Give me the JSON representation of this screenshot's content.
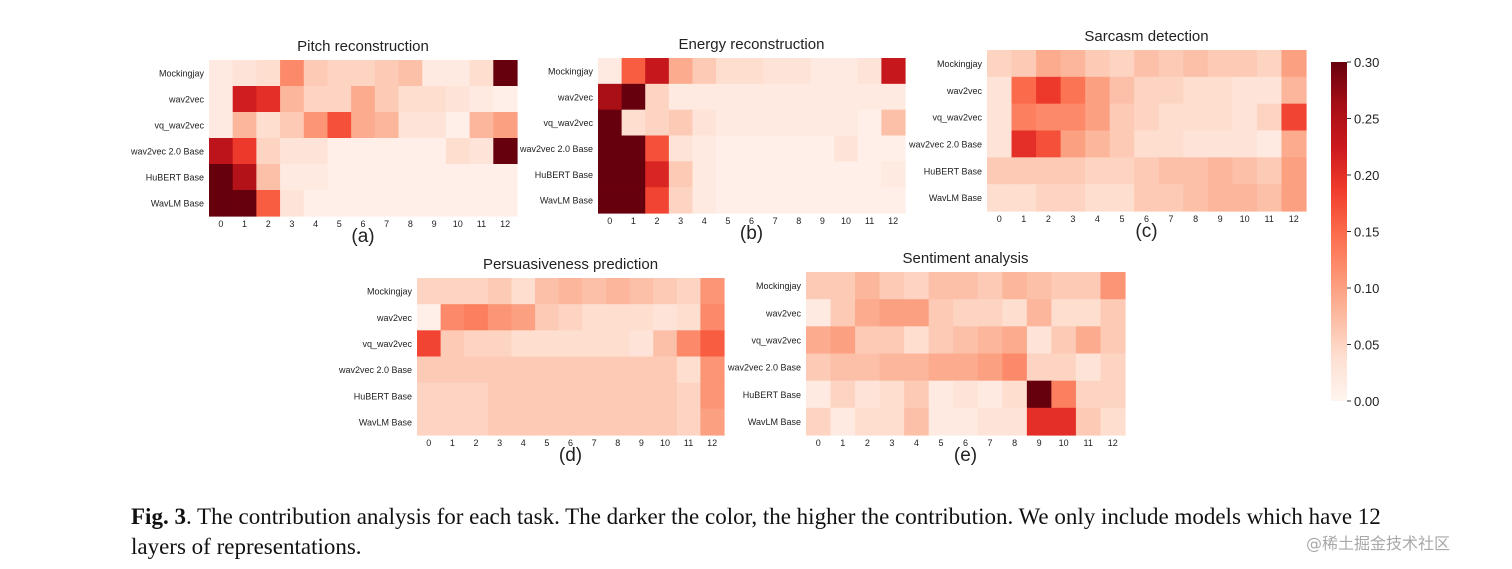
{
  "colormap": {
    "name": "Reds",
    "stops": [
      "#fff5f0",
      "#fee0d2",
      "#fcbba1",
      "#fc9272",
      "#fb6a4a",
      "#ef3b2c",
      "#cb181d",
      "#a50f15",
      "#67000d"
    ]
  },
  "colorbar": {
    "vmin": 0.0,
    "vmax": 0.3,
    "tick_labels": [
      "0.30",
      "0.25",
      "0.20",
      "0.15",
      "0.10",
      "0.05",
      "0.00"
    ],
    "tick_values": [
      0.3,
      0.25,
      0.2,
      0.15,
      0.1,
      0.05,
      0.0
    ]
  },
  "chart_data": [
    {
      "type": "heatmap",
      "title": "Pitch reconstruction",
      "panel_label": "(a)",
      "rows": [
        "Mockingjay",
        "wav2vec",
        "vq_wav2vec",
        "wav2vec 2.0 Base",
        "HuBERT Base",
        "WavLM Base"
      ],
      "cols": [
        "0",
        "1",
        "2",
        "3",
        "4",
        "5",
        "6",
        "7",
        "8",
        "9",
        "10",
        "11",
        "12"
      ],
      "values": [
        [
          0.02,
          0.03,
          0.04,
          0.12,
          0.06,
          0.05,
          0.05,
          0.06,
          0.07,
          0.02,
          0.02,
          0.04,
          0.3
        ],
        [
          0.02,
          0.22,
          0.2,
          0.08,
          0.05,
          0.05,
          0.09,
          0.06,
          0.04,
          0.04,
          0.03,
          0.02,
          0.01
        ],
        [
          0.02,
          0.08,
          0.04,
          0.06,
          0.11,
          0.17,
          0.09,
          0.08,
          0.03,
          0.03,
          0.01,
          0.08,
          0.1
        ],
        [
          0.24,
          0.19,
          0.05,
          0.03,
          0.03,
          0.01,
          0.01,
          0.01,
          0.01,
          0.01,
          0.04,
          0.03,
          0.3
        ],
        [
          0.3,
          0.25,
          0.07,
          0.02,
          0.02,
          0.01,
          0.01,
          0.01,
          0.01,
          0.01,
          0.01,
          0.01,
          0.01
        ],
        [
          0.3,
          0.3,
          0.16,
          0.03,
          0.01,
          0.01,
          0.01,
          0.01,
          0.01,
          0.01,
          0.01,
          0.01,
          0.01
        ]
      ]
    },
    {
      "type": "heatmap",
      "title": "Energy reconstruction",
      "panel_label": "(b)",
      "rows": [
        "Mockingjay",
        "wav2vec",
        "vq_wav2vec",
        "wav2vec 2.0 Base",
        "HuBERT Base",
        "WavLM Base"
      ],
      "cols": [
        "0",
        "1",
        "2",
        "3",
        "4",
        "5",
        "6",
        "7",
        "8",
        "9",
        "10",
        "11",
        "12"
      ],
      "values": [
        [
          0.02,
          0.16,
          0.23,
          0.09,
          0.06,
          0.04,
          0.04,
          0.03,
          0.03,
          0.02,
          0.02,
          0.03,
          0.23
        ],
        [
          0.26,
          0.3,
          0.05,
          0.02,
          0.02,
          0.02,
          0.02,
          0.02,
          0.02,
          0.02,
          0.02,
          0.02,
          0.02
        ],
        [
          0.3,
          0.04,
          0.05,
          0.06,
          0.03,
          0.02,
          0.02,
          0.02,
          0.02,
          0.02,
          0.02,
          0.01,
          0.07
        ],
        [
          0.3,
          0.3,
          0.17,
          0.03,
          0.02,
          0.01,
          0.01,
          0.01,
          0.01,
          0.01,
          0.03,
          0.01,
          0.01
        ],
        [
          0.3,
          0.3,
          0.21,
          0.06,
          0.02,
          0.01,
          0.01,
          0.01,
          0.01,
          0.01,
          0.01,
          0.01,
          0.02
        ],
        [
          0.3,
          0.3,
          0.18,
          0.05,
          0.02,
          0.01,
          0.01,
          0.01,
          0.01,
          0.01,
          0.01,
          0.01,
          0.01
        ]
      ]
    },
    {
      "type": "heatmap",
      "title": "Sarcasm detection",
      "panel_label": "(c)",
      "rows": [
        "Mockingjay",
        "wav2vec",
        "vq_wav2vec",
        "wav2vec 2.0 Base",
        "HuBERT Base",
        "WavLM Base"
      ],
      "cols": [
        "0",
        "1",
        "2",
        "3",
        "4",
        "5",
        "6",
        "7",
        "8",
        "9",
        "10",
        "11",
        "12"
      ],
      "values": [
        [
          0.05,
          0.06,
          0.09,
          0.08,
          0.06,
          0.05,
          0.07,
          0.06,
          0.07,
          0.06,
          0.06,
          0.05,
          0.1
        ],
        [
          0.03,
          0.15,
          0.19,
          0.14,
          0.1,
          0.07,
          0.05,
          0.05,
          0.04,
          0.04,
          0.03,
          0.03,
          0.08
        ],
        [
          0.03,
          0.13,
          0.12,
          0.12,
          0.1,
          0.06,
          0.05,
          0.04,
          0.04,
          0.04,
          0.03,
          0.05,
          0.18
        ],
        [
          0.03,
          0.2,
          0.17,
          0.1,
          0.08,
          0.06,
          0.04,
          0.04,
          0.03,
          0.03,
          0.03,
          0.02,
          0.09
        ],
        [
          0.06,
          0.06,
          0.06,
          0.06,
          0.05,
          0.05,
          0.06,
          0.07,
          0.07,
          0.08,
          0.07,
          0.06,
          0.1
        ],
        [
          0.04,
          0.04,
          0.05,
          0.05,
          0.04,
          0.04,
          0.06,
          0.06,
          0.07,
          0.08,
          0.08,
          0.07,
          0.1
        ]
      ]
    },
    {
      "type": "heatmap",
      "title": "Persuasiveness prediction",
      "panel_label": "(d)",
      "rows": [
        "Mockingjay",
        "wav2vec",
        "vq_wav2vec",
        "wav2vec 2.0 Base",
        "HuBERT Base",
        "WavLM Base"
      ],
      "cols": [
        "0",
        "1",
        "2",
        "3",
        "4",
        "5",
        "6",
        "7",
        "8",
        "9",
        "10",
        "11",
        "12"
      ],
      "values": [
        [
          0.05,
          0.05,
          0.05,
          0.06,
          0.04,
          0.07,
          0.08,
          0.07,
          0.08,
          0.07,
          0.06,
          0.05,
          0.11
        ],
        [
          0.01,
          0.12,
          0.13,
          0.11,
          0.1,
          0.06,
          0.05,
          0.04,
          0.04,
          0.04,
          0.03,
          0.04,
          0.12
        ],
        [
          0.18,
          0.06,
          0.05,
          0.05,
          0.04,
          0.04,
          0.04,
          0.04,
          0.04,
          0.03,
          0.07,
          0.12,
          0.16
        ],
        [
          0.06,
          0.06,
          0.06,
          0.06,
          0.06,
          0.06,
          0.06,
          0.06,
          0.06,
          0.06,
          0.06,
          0.04,
          0.11
        ],
        [
          0.05,
          0.05,
          0.05,
          0.06,
          0.06,
          0.06,
          0.06,
          0.06,
          0.06,
          0.06,
          0.06,
          0.05,
          0.11
        ],
        [
          0.05,
          0.05,
          0.05,
          0.06,
          0.06,
          0.06,
          0.06,
          0.06,
          0.06,
          0.06,
          0.06,
          0.05,
          0.1
        ]
      ]
    },
    {
      "type": "heatmap",
      "title": "Sentiment analysis",
      "panel_label": "(e)",
      "rows": [
        "Mockingjay",
        "wav2vec",
        "vq_wav2vec",
        "wav2vec 2.0 Base",
        "HuBERT Base",
        "WavLM Base"
      ],
      "cols": [
        "0",
        "1",
        "2",
        "3",
        "4",
        "5",
        "6",
        "7",
        "8",
        "9",
        "10",
        "11",
        "12"
      ],
      "values": [
        [
          0.06,
          0.06,
          0.08,
          0.06,
          0.05,
          0.07,
          0.07,
          0.06,
          0.08,
          0.07,
          0.06,
          0.06,
          0.11
        ],
        [
          0.02,
          0.06,
          0.09,
          0.1,
          0.1,
          0.06,
          0.05,
          0.05,
          0.04,
          0.08,
          0.04,
          0.04,
          0.06
        ],
        [
          0.09,
          0.1,
          0.06,
          0.06,
          0.04,
          0.06,
          0.07,
          0.08,
          0.09,
          0.03,
          0.06,
          0.09,
          0.06
        ],
        [
          0.06,
          0.07,
          0.07,
          0.08,
          0.08,
          0.09,
          0.09,
          0.1,
          0.12,
          0.05,
          0.05,
          0.03,
          0.05
        ],
        [
          0.02,
          0.05,
          0.03,
          0.04,
          0.06,
          0.02,
          0.03,
          0.02,
          0.04,
          0.3,
          0.13,
          0.05,
          0.05
        ],
        [
          0.05,
          0.02,
          0.04,
          0.04,
          0.07,
          0.02,
          0.02,
          0.03,
          0.03,
          0.2,
          0.2,
          0.06,
          0.04
        ]
      ]
    }
  ],
  "caption": {
    "label": "Fig. 3",
    "text": ". The contribution analysis for each task. The darker the color, the higher the contribution. We only include models which have 12 layers of representations."
  },
  "watermark": "@稀土掘金技术社区"
}
